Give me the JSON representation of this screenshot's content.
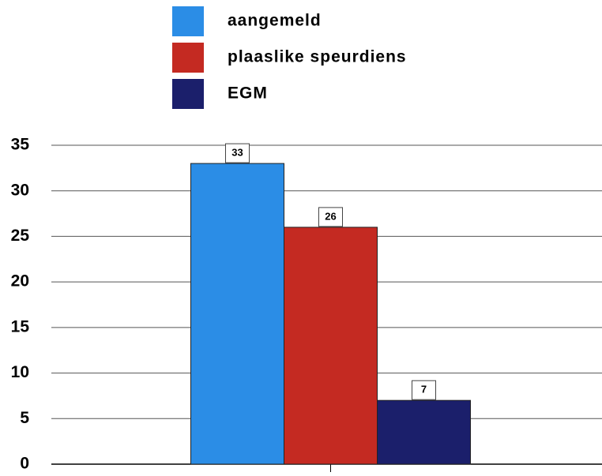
{
  "chart_data": {
    "type": "bar",
    "categories": [
      null
    ],
    "series": [
      {
        "name": "aangemeld",
        "color": "#2b8de6",
        "values": [
          33
        ]
      },
      {
        "name": "plaaslike speurdiens",
        "color": "#c42a22",
        "values": [
          26
        ]
      },
      {
        "name": "EGM",
        "color": "#1b1f6b",
        "values": [
          7
        ]
      }
    ],
    "ylim": [
      0,
      35
    ],
    "yticks": [
      0,
      5,
      10,
      15,
      20,
      25,
      30,
      35
    ],
    "grid": true,
    "legend": "top"
  }
}
